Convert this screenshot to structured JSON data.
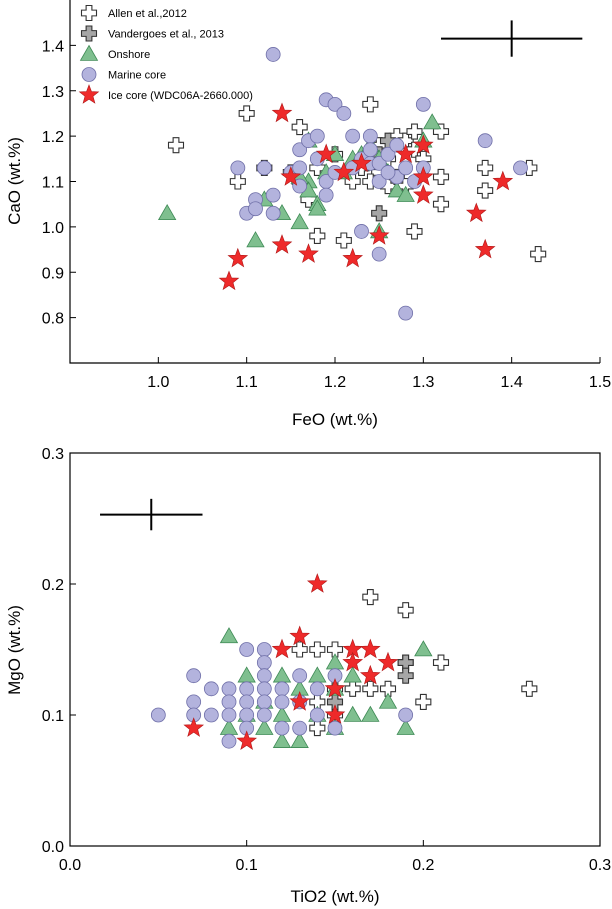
{
  "colors": {
    "allen": "#ffffff",
    "vandergoes": "#a6a6a6",
    "onshore": "#7fbf8f",
    "marine": "#b3b3dd",
    "ice": "#ee2a2a",
    "outline": "#333333"
  },
  "legend": [
    {
      "key": "allen",
      "label": "Allen et al.,2012",
      "marker": "cross",
      "icon": "cross-icon"
    },
    {
      "key": "vandergoes",
      "label": "Vandergoes et al., 2013",
      "marker": "cross",
      "icon": "cross-icon"
    },
    {
      "key": "onshore",
      "label": "Onshore",
      "marker": "triangle",
      "icon": "triangle-icon"
    },
    {
      "key": "marine",
      "label": "Marine core",
      "marker": "circle",
      "icon": "circle-icon"
    },
    {
      "key": "ice",
      "label": "Ice core (WDC06A-2660.000)",
      "marker": "star",
      "icon": "star-icon"
    }
  ],
  "chart_data": [
    {
      "type": "scatter",
      "title": "",
      "xlabel": "FeO (wt.%)",
      "ylabel": "CaO (wt.%)",
      "xlim": [
        0.9,
        1.5
      ],
      "ylim": [
        0.7,
        1.5
      ],
      "xticks": [
        "1.0",
        "1.1",
        "1.2",
        "1.3",
        "1.4",
        "1.5"
      ],
      "yticks": [
        "0.8",
        "0.9",
        "1.0",
        "1.1",
        "1.2",
        "1.3",
        "1.4"
      ],
      "legend_position": "top-left",
      "error_bar": {
        "x": 1.4,
        "y": 1.415,
        "x_err": 0.08,
        "y_err": 0.04
      },
      "series": [
        {
          "name": "Allen et al.,2012",
          "key": "allen",
          "marker": "cross",
          "points": [
            [
              1.02,
              1.18
            ],
            [
              1.1,
              1.25
            ],
            [
              1.09,
              1.1
            ],
            [
              1.12,
              1.13
            ],
            [
              1.16,
              1.22
            ],
            [
              1.16,
              1.1
            ],
            [
              1.15,
              1.12
            ],
            [
              1.18,
              1.13
            ],
            [
              1.17,
              1.06
            ],
            [
              1.18,
              0.98
            ],
            [
              1.21,
              0.97
            ],
            [
              1.22,
              1.1
            ],
            [
              1.24,
              1.27
            ],
            [
              1.25,
              1.12
            ],
            [
              1.26,
              1.15
            ],
            [
              1.26,
              1.09
            ],
            [
              1.27,
              1.2
            ],
            [
              1.28,
              1.19
            ],
            [
              1.27,
              1.11
            ],
            [
              1.29,
              1.21
            ],
            [
              1.29,
              1.17
            ],
            [
              1.29,
              0.99
            ],
            [
              1.3,
              1.15
            ],
            [
              1.32,
              1.21
            ],
            [
              1.32,
              1.11
            ],
            [
              1.32,
              1.05
            ],
            [
              1.37,
              1.13
            ],
            [
              1.37,
              1.08
            ],
            [
              1.42,
              1.13
            ],
            [
              1.43,
              0.94
            ],
            [
              1.24,
              1.1
            ],
            [
              1.25,
              1.18
            ],
            [
              1.28,
              1.09
            ],
            [
              1.23,
              1.13
            ],
            [
              1.2,
              1.16
            ]
          ]
        },
        {
          "name": "Vandergoes et al., 2013",
          "key": "vandergoes",
          "marker": "cross",
          "points": [
            [
              1.25,
              1.03
            ],
            [
              1.26,
              1.19
            ],
            [
              1.25,
              1.16
            ]
          ]
        },
        {
          "name": "Onshore",
          "key": "onshore",
          "marker": "triangle",
          "points": [
            [
              1.01,
              1.03
            ],
            [
              1.11,
              0.97
            ],
            [
              1.12,
              1.06
            ],
            [
              1.14,
              1.03
            ],
            [
              1.16,
              1.01
            ],
            [
              1.17,
              1.1
            ],
            [
              1.17,
              1.08
            ],
            [
              1.18,
              1.05
            ],
            [
              1.18,
              1.04
            ],
            [
              1.19,
              1.12
            ],
            [
              1.2,
              1.16
            ],
            [
              1.21,
              1.12
            ],
            [
              1.22,
              1.15
            ],
            [
              1.23,
              1.16
            ],
            [
              1.24,
              1.18
            ],
            [
              1.25,
              0.99
            ],
            [
              1.25,
              1.15
            ],
            [
              1.26,
              1.12
            ],
            [
              1.27,
              1.08
            ],
            [
              1.28,
              1.07
            ],
            [
              1.3,
              1.19
            ],
            [
              1.31,
              1.23
            ],
            [
              1.17,
              1.19
            ],
            [
              1.16,
              1.11
            ]
          ]
        },
        {
          "name": "Marine core",
          "key": "marine",
          "marker": "circle",
          "points": [
            [
              1.09,
              1.13
            ],
            [
              1.1,
              1.03
            ],
            [
              1.11,
              1.06
            ],
            [
              1.11,
              1.04
            ],
            [
              1.12,
              1.13
            ],
            [
              1.13,
              1.07
            ],
            [
              1.13,
              1.03
            ],
            [
              1.13,
              1.38
            ],
            [
              1.15,
              1.12
            ],
            [
              1.16,
              1.17
            ],
            [
              1.16,
              1.13
            ],
            [
              1.16,
              1.09
            ],
            [
              1.17,
              1.19
            ],
            [
              1.18,
              1.2
            ],
            [
              1.18,
              1.15
            ],
            [
              1.19,
              1.28
            ],
            [
              1.19,
              1.1
            ],
            [
              1.19,
              1.07
            ],
            [
              1.2,
              1.27
            ],
            [
              1.2,
              1.12
            ],
            [
              1.21,
              1.25
            ],
            [
              1.22,
              1.13
            ],
            [
              1.23,
              1.15
            ],
            [
              1.23,
              0.99
            ],
            [
              1.24,
              1.14
            ],
            [
              1.24,
              1.2
            ],
            [
              1.24,
              1.17
            ],
            [
              1.25,
              1.14
            ],
            [
              1.25,
              1.1
            ],
            [
              1.25,
              0.94
            ],
            [
              1.26,
              1.16
            ],
            [
              1.27,
              1.11
            ],
            [
              1.27,
              1.18
            ],
            [
              1.28,
              1.13
            ],
            [
              1.28,
              0.81
            ],
            [
              1.3,
              1.27
            ],
            [
              1.3,
              1.13
            ],
            [
              1.37,
              1.19
            ],
            [
              1.41,
              1.13
            ],
            [
              1.22,
              1.2
            ],
            [
              1.26,
              1.12
            ],
            [
              1.29,
              1.1
            ]
          ]
        },
        {
          "name": "Ice core (WDC06A-2660.000)",
          "key": "ice",
          "marker": "star",
          "points": [
            [
              1.08,
              0.88
            ],
            [
              1.09,
              0.93
            ],
            [
              1.14,
              1.25
            ],
            [
              1.14,
              0.96
            ],
            [
              1.15,
              1.11
            ],
            [
              1.17,
              0.94
            ],
            [
              1.19,
              1.16
            ],
            [
              1.21,
              1.12
            ],
            [
              1.22,
              0.93
            ],
            [
              1.23,
              1.14
            ],
            [
              1.25,
              0.98
            ],
            [
              1.28,
              1.16
            ],
            [
              1.3,
              1.18
            ],
            [
              1.3,
              1.11
            ],
            [
              1.3,
              1.07
            ],
            [
              1.36,
              1.03
            ],
            [
              1.37,
              0.95
            ],
            [
              1.39,
              1.1
            ]
          ]
        }
      ]
    },
    {
      "type": "scatter",
      "title": "",
      "xlabel": "TiO2 (wt.%)",
      "ylabel": "MgO (wt.%)",
      "xlim": [
        0.0,
        0.3
      ],
      "ylim": [
        0.0,
        0.3
      ],
      "xticks": [
        "0.0",
        "0.1",
        "0.2",
        "0.3"
      ],
      "yticks": [
        "0.0",
        "0.1",
        "0.2",
        "0.3"
      ],
      "error_bar": {
        "x": 0.046,
        "y": 0.253,
        "x_err": 0.029,
        "y_err": 0.012
      },
      "series": [
        {
          "name": "Allen et al.,2012",
          "key": "allen",
          "marker": "cross",
          "points": [
            [
              0.13,
              0.15
            ],
            [
              0.14,
              0.15
            ],
            [
              0.15,
              0.15
            ],
            [
              0.15,
              0.12
            ],
            [
              0.14,
              0.09
            ],
            [
              0.14,
              0.11
            ],
            [
              0.16,
              0.12
            ],
            [
              0.17,
              0.19
            ],
            [
              0.17,
              0.12
            ],
            [
              0.18,
              0.12
            ],
            [
              0.19,
              0.18
            ],
            [
              0.19,
              0.14
            ],
            [
              0.2,
              0.11
            ],
            [
              0.21,
              0.14
            ],
            [
              0.26,
              0.12
            ],
            [
              0.15,
              0.1
            ]
          ]
        },
        {
          "name": "Vandergoes et al., 2013",
          "key": "vandergoes",
          "marker": "cross",
          "points": [
            [
              0.19,
              0.14
            ],
            [
              0.19,
              0.13
            ],
            [
              0.15,
              0.11
            ]
          ]
        },
        {
          "name": "Onshore",
          "key": "onshore",
          "marker": "triangle",
          "points": [
            [
              0.09,
              0.16
            ],
            [
              0.09,
              0.09
            ],
            [
              0.1,
              0.13
            ],
            [
              0.1,
              0.1
            ],
            [
              0.11,
              0.11
            ],
            [
              0.11,
              0.09
            ],
            [
              0.12,
              0.13
            ],
            [
              0.12,
              0.08
            ],
            [
              0.13,
              0.12
            ],
            [
              0.13,
              0.08
            ],
            [
              0.14,
              0.13
            ],
            [
              0.14,
              0.1
            ],
            [
              0.15,
              0.12
            ],
            [
              0.15,
              0.09
            ],
            [
              0.16,
              0.13
            ],
            [
              0.16,
              0.1
            ],
            [
              0.17,
              0.1
            ],
            [
              0.18,
              0.11
            ],
            [
              0.19,
              0.09
            ],
            [
              0.2,
              0.15
            ],
            [
              0.15,
              0.14
            ],
            [
              0.12,
              0.1
            ]
          ]
        },
        {
          "name": "Marine core",
          "key": "marine",
          "marker": "circle",
          "points": [
            [
              0.05,
              0.1
            ],
            [
              0.07,
              0.13
            ],
            [
              0.07,
              0.11
            ],
            [
              0.07,
              0.1
            ],
            [
              0.08,
              0.12
            ],
            [
              0.08,
              0.1
            ],
            [
              0.09,
              0.12
            ],
            [
              0.09,
              0.11
            ],
            [
              0.09,
              0.1
            ],
            [
              0.09,
              0.08
            ],
            [
              0.1,
              0.15
            ],
            [
              0.1,
              0.12
            ],
            [
              0.1,
              0.11
            ],
            [
              0.1,
              0.1
            ],
            [
              0.1,
              0.09
            ],
            [
              0.11,
              0.15
            ],
            [
              0.11,
              0.14
            ],
            [
              0.11,
              0.13
            ],
            [
              0.11,
              0.12
            ],
            [
              0.11,
              0.11
            ],
            [
              0.11,
              0.1
            ],
            [
              0.12,
              0.12
            ],
            [
              0.12,
              0.11
            ],
            [
              0.12,
              0.09
            ],
            [
              0.13,
              0.13
            ],
            [
              0.13,
              0.11
            ],
            [
              0.13,
              0.09
            ],
            [
              0.14,
              0.12
            ],
            [
              0.14,
              0.1
            ],
            [
              0.15,
              0.13
            ],
            [
              0.15,
              0.09
            ],
            [
              0.19,
              0.1
            ]
          ]
        },
        {
          "name": "Ice core (WDC06A-2660.000)",
          "key": "ice",
          "marker": "star",
          "points": [
            [
              0.07,
              0.09
            ],
            [
              0.1,
              0.08
            ],
            [
              0.12,
              0.15
            ],
            [
              0.13,
              0.16
            ],
            [
              0.14,
              0.2
            ],
            [
              0.15,
              0.12
            ],
            [
              0.15,
              0.1
            ],
            [
              0.16,
              0.15
            ],
            [
              0.16,
              0.14
            ],
            [
              0.17,
              0.15
            ],
            [
              0.17,
              0.13
            ],
            [
              0.18,
              0.14
            ],
            [
              0.13,
              0.11
            ]
          ]
        }
      ]
    }
  ]
}
